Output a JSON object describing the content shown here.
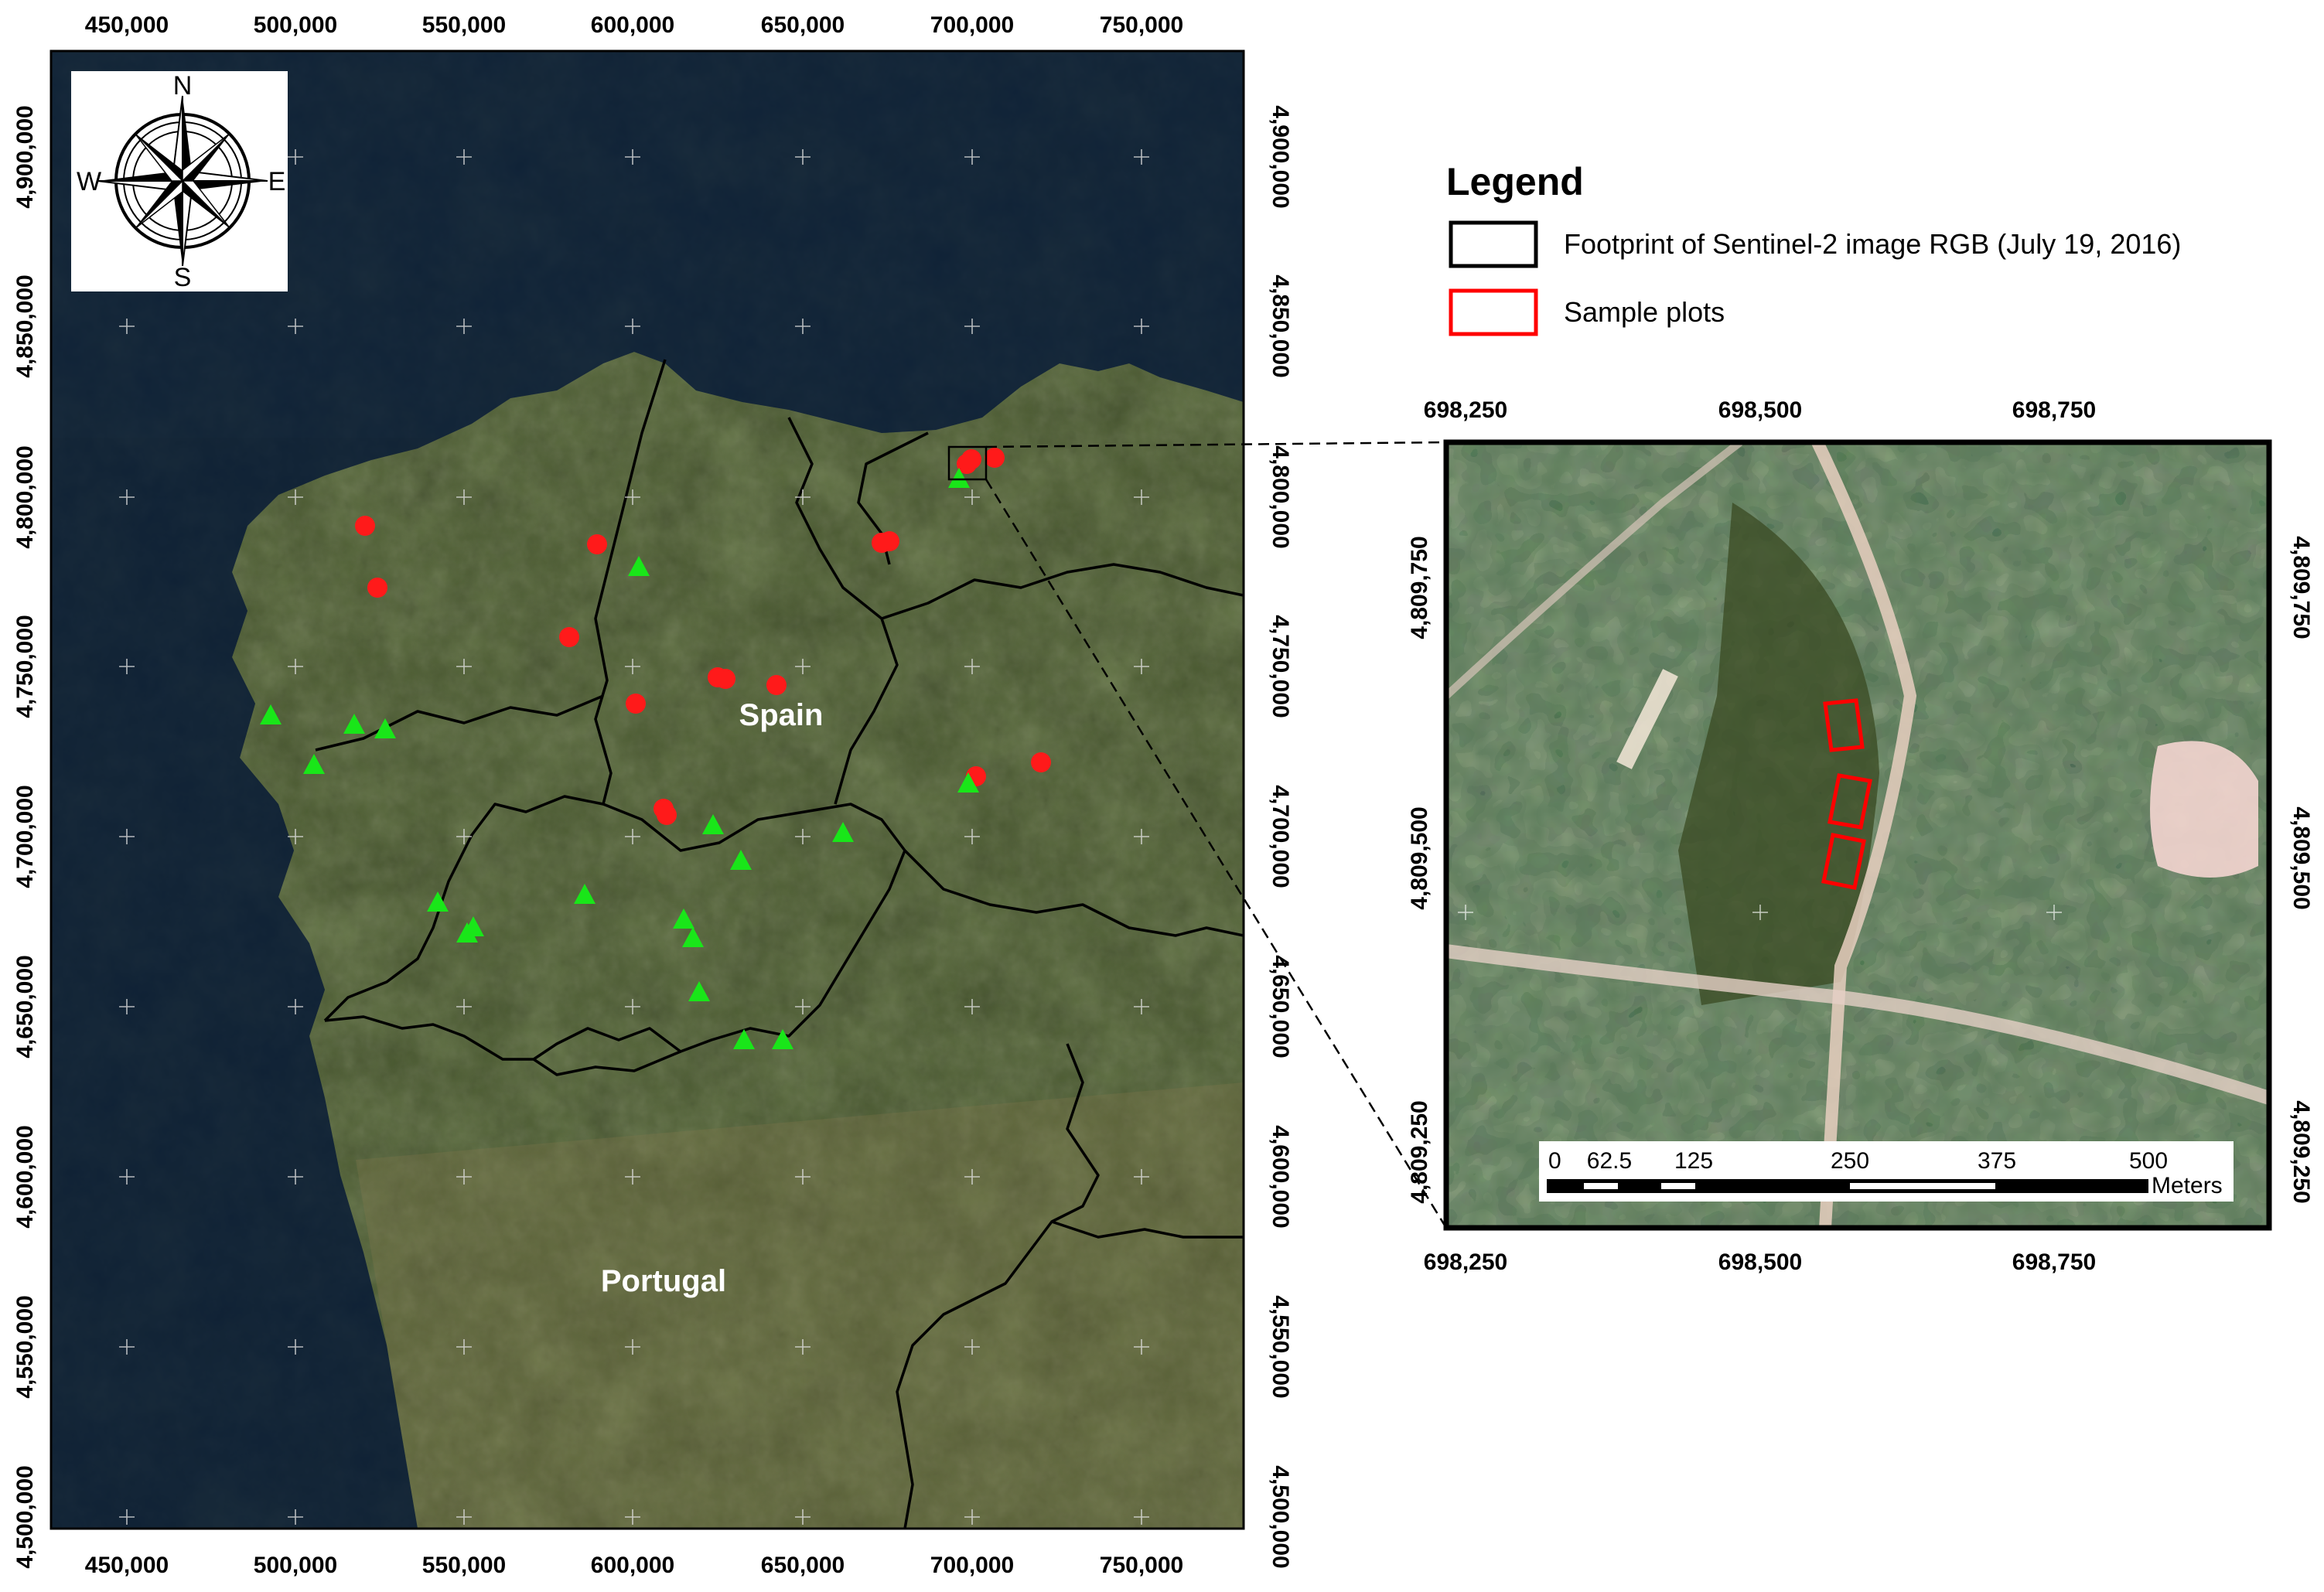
{
  "main_map": {
    "x_ticks": [
      "450,000",
      "500,000",
      "550,000",
      "600,000",
      "650,000",
      "700,000",
      "750,000"
    ],
    "y_ticks": [
      "4,900,000",
      "4,850,000",
      "4,800,000",
      "4,750,000",
      "4,700,000",
      "4,650,000",
      "4,600,000",
      "4,550,000",
      "4,500,000"
    ],
    "labels": {
      "spain": "Spain",
      "portugal": "Portugal"
    },
    "compass": {
      "n": "N",
      "s": "S",
      "e": "E",
      "w": "W"
    },
    "plot_marker_color": "#ff1a1a",
    "plot_marker_shape": "circle",
    "triangle_marker_color": "#19e619",
    "triangle_marker_shape": "triangle",
    "footprint_color": "#000000"
  },
  "legend": {
    "title": "Legend",
    "items": [
      {
        "label": "Footprint of Sentinel-2 image RGB (July 19, 2016)",
        "color": "#000000"
      },
      {
        "label": "Sample plots",
        "color": "#ff0000"
      }
    ]
  },
  "inset": {
    "x_ticks": [
      "698,250",
      "698,500",
      "698,750"
    ],
    "y_ticks": [
      "4,809,750",
      "4,809,500",
      "4,809,250"
    ],
    "scalebar": {
      "labels": [
        "0",
        "62.5",
        "125",
        "250",
        "375",
        "500"
      ],
      "unit": "Meters"
    }
  }
}
